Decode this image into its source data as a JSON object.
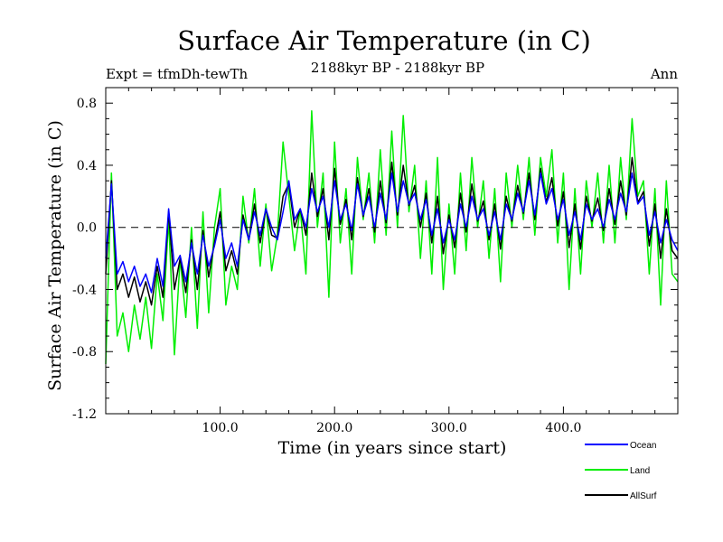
{
  "chart_data": {
    "type": "line",
    "title": "Surface Air Temperature (in C)",
    "subtitle": "2188kyr BP - 2188kyr BP",
    "top_left_label": "Expt = tfmDh-tewTh",
    "top_right_label": "Ann",
    "xlabel": "Time (in years since start)",
    "ylabel": "Surface Air Temperature (in C)",
    "xlim": [
      0,
      500
    ],
    "ylim": [
      -1.2,
      0.9
    ],
    "x_ticks": [
      {
        "value": 100,
        "label": "100.0"
      },
      {
        "value": 200,
        "label": "200.0"
      },
      {
        "value": 300,
        "label": "300.0"
      },
      {
        "value": 400,
        "label": "400.0"
      }
    ],
    "y_ticks": [
      {
        "value": 0.8,
        "label": "0.8"
      },
      {
        "value": 0.4,
        "label": "0.4"
      },
      {
        "value": 0.0,
        "label": "0.0"
      },
      {
        "value": -0.4,
        "label": "-0.4"
      },
      {
        "value": -0.8,
        "label": "-0.8"
      },
      {
        "value": -1.2,
        "label": "-1.2"
      }
    ],
    "reference_line": {
      "y": 0.0,
      "style": "dashed"
    },
    "legend_placement": "bottom-right, below plot",
    "series": [
      {
        "name": "Ocean",
        "color": "#0000ff",
        "x": [
          0,
          5,
          10,
          15,
          20,
          25,
          30,
          35,
          40,
          45,
          50,
          55,
          60,
          65,
          70,
          75,
          80,
          85,
          90,
          95,
          100,
          105,
          110,
          115,
          120,
          125,
          130,
          135,
          140,
          145,
          150,
          155,
          160,
          165,
          170,
          175,
          180,
          185,
          190,
          195,
          200,
          205,
          210,
          215,
          220,
          225,
          230,
          235,
          240,
          245,
          250,
          255,
          260,
          265,
          270,
          275,
          280,
          285,
          290,
          295,
          300,
          305,
          310,
          315,
          320,
          325,
          330,
          335,
          340,
          345,
          350,
          355,
          360,
          365,
          370,
          375,
          380,
          385,
          390,
          395,
          400,
          405,
          410,
          415,
          420,
          425,
          430,
          435,
          440,
          445,
          450,
          455,
          460,
          465,
          470,
          475,
          480,
          485,
          490,
          495,
          500
        ],
        "values": [
          -0.2,
          0.28,
          -0.3,
          -0.22,
          -0.35,
          -0.25,
          -0.38,
          -0.3,
          -0.42,
          -0.2,
          -0.38,
          0.12,
          -0.25,
          -0.18,
          -0.35,
          -0.1,
          -0.3,
          -0.05,
          -0.25,
          -0.12,
          0.05,
          -0.2,
          -0.1,
          -0.25,
          0.05,
          -0.08,
          0.1,
          -0.05,
          0.12,
          0.0,
          -0.08,
          0.1,
          0.3,
          0.05,
          0.12,
          0.0,
          0.25,
          0.1,
          0.2,
          0.0,
          0.3,
          0.05,
          0.15,
          -0.02,
          0.28,
          0.08,
          0.2,
          0.0,
          0.22,
          0.05,
          0.35,
          0.1,
          0.3,
          0.15,
          0.22,
          0.05,
          0.18,
          -0.05,
          0.12,
          -0.1,
          0.05,
          -0.08,
          0.15,
          0.0,
          0.2,
          0.05,
          0.12,
          -0.05,
          0.1,
          -0.08,
          0.15,
          0.05,
          0.22,
          0.1,
          0.3,
          0.08,
          0.35,
          0.15,
          0.25,
          0.05,
          0.18,
          -0.05,
          0.1,
          -0.08,
          0.15,
          0.05,
          0.12,
          0.0,
          0.18,
          0.05,
          0.22,
          0.1,
          0.35,
          0.15,
          0.2,
          -0.05,
          0.1,
          -0.1,
          0.05,
          -0.08,
          -0.15
        ]
      },
      {
        "name": "Land",
        "color": "#00ee00",
        "x": [
          0,
          5,
          10,
          15,
          20,
          25,
          30,
          35,
          40,
          45,
          50,
          55,
          60,
          65,
          70,
          75,
          80,
          85,
          90,
          95,
          100,
          105,
          110,
          115,
          120,
          125,
          130,
          135,
          140,
          145,
          150,
          155,
          160,
          165,
          170,
          175,
          180,
          185,
          190,
          195,
          200,
          205,
          210,
          215,
          220,
          225,
          230,
          235,
          240,
          245,
          250,
          255,
          260,
          265,
          270,
          275,
          280,
          285,
          290,
          295,
          300,
          305,
          310,
          315,
          320,
          325,
          330,
          335,
          340,
          345,
          350,
          355,
          360,
          365,
          370,
          375,
          380,
          385,
          390,
          395,
          400,
          405,
          410,
          415,
          420,
          425,
          430,
          435,
          440,
          445,
          450,
          455,
          460,
          465,
          470,
          475,
          480,
          485,
          490,
          495,
          500
        ],
        "values": [
          -0.88,
          0.35,
          -0.7,
          -0.55,
          -0.8,
          -0.5,
          -0.72,
          -0.45,
          -0.78,
          -0.3,
          -0.6,
          0.05,
          -0.82,
          -0.2,
          -0.58,
          0.0,
          -0.65,
          0.1,
          -0.55,
          0.0,
          0.25,
          -0.5,
          -0.25,
          -0.4,
          0.2,
          -0.1,
          0.25,
          -0.25,
          0.15,
          -0.28,
          -0.05,
          0.55,
          0.2,
          -0.15,
          0.12,
          -0.3,
          0.75,
          0.0,
          0.35,
          -0.45,
          0.55,
          -0.1,
          0.25,
          -0.3,
          0.45,
          0.05,
          0.35,
          -0.1,
          0.5,
          -0.05,
          0.62,
          0.0,
          0.72,
          0.1,
          0.4,
          -0.2,
          0.3,
          -0.3,
          0.45,
          -0.4,
          0.15,
          -0.3,
          0.35,
          -0.15,
          0.45,
          0.0,
          0.3,
          -0.2,
          0.25,
          -0.35,
          0.35,
          0.0,
          0.4,
          0.05,
          0.45,
          -0.05,
          0.45,
          0.2,
          0.5,
          -0.1,
          0.35,
          -0.4,
          0.25,
          -0.3,
          0.3,
          0.0,
          0.35,
          -0.1,
          0.4,
          -0.1,
          0.45,
          0.05,
          0.7,
          0.2,
          0.3,
          -0.3,
          0.25,
          -0.5,
          0.3,
          -0.3,
          -0.35
        ]
      },
      {
        "name": "AllSurf",
        "color": "#000000",
        "x": [
          0,
          5,
          10,
          15,
          20,
          25,
          30,
          35,
          40,
          45,
          50,
          55,
          60,
          65,
          70,
          75,
          80,
          85,
          90,
          95,
          100,
          105,
          110,
          115,
          120,
          125,
          130,
          135,
          140,
          145,
          150,
          155,
          160,
          165,
          170,
          175,
          180,
          185,
          190,
          195,
          200,
          205,
          210,
          215,
          220,
          225,
          230,
          235,
          240,
          245,
          250,
          255,
          260,
          265,
          270,
          275,
          280,
          285,
          290,
          295,
          300,
          305,
          310,
          315,
          320,
          325,
          330,
          335,
          340,
          345,
          350,
          355,
          360,
          365,
          370,
          375,
          380,
          385,
          390,
          395,
          400,
          405,
          410,
          415,
          420,
          425,
          430,
          435,
          440,
          445,
          450,
          455,
          460,
          465,
          470,
          475,
          480,
          485,
          490,
          495,
          500
        ],
        "values": [
          -0.3,
          0.3,
          -0.4,
          -0.3,
          -0.45,
          -0.32,
          -0.48,
          -0.35,
          -0.5,
          -0.25,
          -0.45,
          0.1,
          -0.4,
          -0.2,
          -0.42,
          -0.08,
          -0.4,
          -0.02,
          -0.32,
          -0.1,
          0.1,
          -0.28,
          -0.15,
          -0.3,
          0.08,
          -0.08,
          0.15,
          -0.1,
          0.12,
          -0.05,
          -0.07,
          0.2,
          0.28,
          0.0,
          0.12,
          -0.05,
          0.35,
          0.07,
          0.25,
          -0.08,
          0.38,
          0.02,
          0.18,
          -0.08,
          0.32,
          0.07,
          0.25,
          -0.03,
          0.3,
          0.03,
          0.42,
          0.08,
          0.4,
          0.14,
          0.27,
          0.0,
          0.22,
          -0.1,
          0.2,
          -0.17,
          0.08,
          -0.13,
          0.22,
          -0.03,
          0.28,
          0.04,
          0.17,
          -0.08,
          0.15,
          -0.14,
          0.2,
          0.04,
          0.27,
          0.09,
          0.35,
          0.05,
          0.38,
          0.16,
          0.32,
          0.01,
          0.23,
          -0.13,
          0.15,
          -0.14,
          0.2,
          0.04,
          0.19,
          -0.02,
          0.25,
          0.02,
          0.3,
          0.08,
          0.45,
          0.16,
          0.23,
          -0.12,
          0.15,
          -0.2,
          0.12,
          -0.15,
          -0.2
        ]
      }
    ]
  }
}
